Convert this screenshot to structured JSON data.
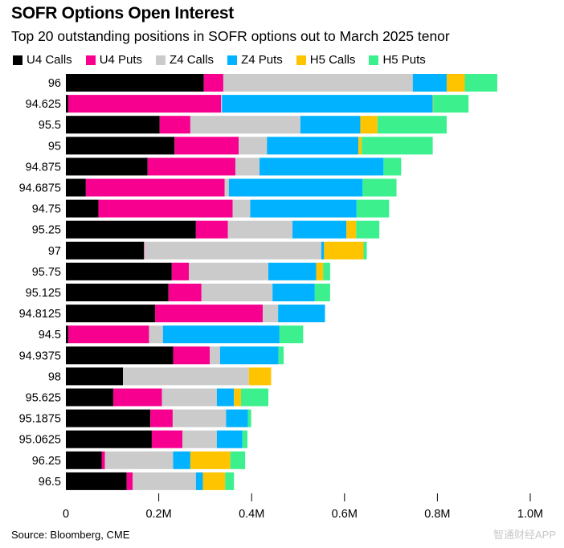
{
  "chart_data": {
    "type": "bar",
    "orientation": "horizontal",
    "stacked": true,
    "title": "SOFR Options Open Interest",
    "subtitle": "Top 20 outstanding positions in SOFR options out to March 2025 tenor",
    "xlabel": "",
    "ylabel": "",
    "xlim": [
      0,
      1000000
    ],
    "xticks": [
      0,
      200000,
      400000,
      600000,
      800000,
      1000000
    ],
    "xtick_labels": [
      "0",
      "0.2M",
      "0.4M",
      "0.6M",
      "0.8M",
      "1.0M"
    ],
    "grid": false,
    "legend_position": "top-left",
    "categories": [
      "96",
      "94.625",
      "95.5",
      "95",
      "94.875",
      "94.6875",
      "94.75",
      "95.25",
      "97",
      "95.75",
      "95.125",
      "94.8125",
      "94.5",
      "94.9375",
      "98",
      "95.625",
      "95.1875",
      "95.0625",
      "96.25",
      "96.5"
    ],
    "series": [
      {
        "name": "U4 Calls",
        "color": "#000000",
        "values": [
          297000,
          5000,
          202000,
          234000,
          176000,
          43000,
          70000,
          280000,
          168000,
          228000,
          221000,
          192000,
          5000,
          231000,
          123000,
          102000,
          182000,
          185000,
          77000,
          131000
        ]
      },
      {
        "name": "U4 Puts",
        "color": "#f7008f",
        "values": [
          42000,
          329000,
          66000,
          138000,
          189000,
          299000,
          289000,
          69000,
          1000,
          37000,
          71000,
          232000,
          174000,
          79000,
          0,
          105000,
          48000,
          66000,
          7000,
          13000
        ]
      },
      {
        "name": "Z4 Calls",
        "color": "#cbcbcb",
        "values": [
          408000,
          2000,
          237000,
          61000,
          52000,
          9000,
          38000,
          139000,
          381000,
          171000,
          153000,
          33000,
          30000,
          22000,
          271000,
          118000,
          115000,
          74000,
          147000,
          136000
        ]
      },
      {
        "name": "Z4 Puts",
        "color": "#00b2ff",
        "values": [
          73000,
          454000,
          129000,
          197000,
          267000,
          288000,
          229000,
          116000,
          6000,
          103000,
          91000,
          101000,
          251000,
          126000,
          0,
          37000,
          47000,
          55000,
          37000,
          15000
        ]
      },
      {
        "name": "H5 Calls",
        "color": "#ffc400",
        "values": [
          39000,
          1000,
          37000,
          7000,
          0,
          0,
          0,
          21000,
          85000,
          15000,
          0,
          0,
          0,
          0,
          48000,
          15000,
          0,
          0,
          86000,
          48000
        ]
      },
      {
        "name": "H5 Puts",
        "color": "#3cf08e",
        "values": [
          70000,
          76000,
          149000,
          153000,
          38000,
          73000,
          70000,
          50000,
          7000,
          15000,
          33000,
          0,
          51000,
          11000,
          0,
          59000,
          7000,
          11000,
          32000,
          19000
        ]
      }
    ]
  },
  "source": "Source: Bloomberg, CME",
  "watermark": "智通财经APP"
}
